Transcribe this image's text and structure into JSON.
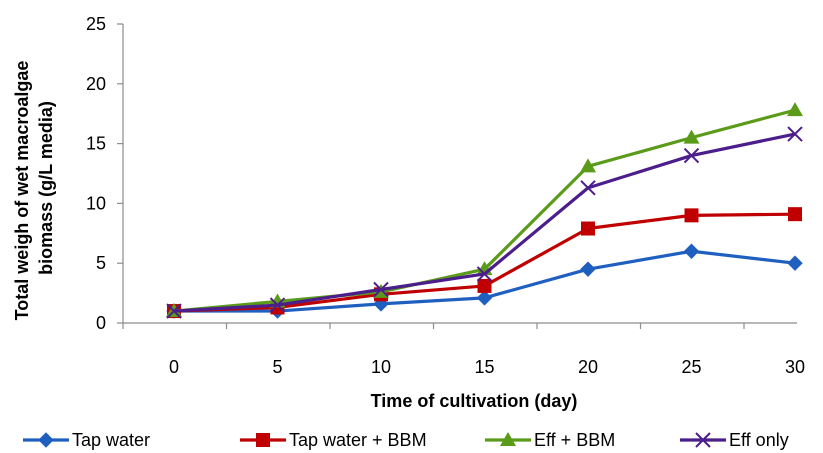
{
  "chart_data": {
    "type": "line",
    "x": [
      0,
      5,
      10,
      15,
      20,
      25,
      30
    ],
    "xlabel": "Time of cultivation (day)",
    "ylabel": "Total weigh of wet macroalgae biomass (g/L media)",
    "ylabel_lines": [
      "Total weigh of wet macroalgae",
      "biomass (g/L media)"
    ],
    "xlim": [
      0,
      30
    ],
    "ylim": [
      0,
      25
    ],
    "yticks": [
      0,
      5,
      10,
      15,
      20,
      25
    ],
    "xticks": [
      0,
      5,
      10,
      15,
      20,
      25,
      30
    ],
    "grid": false,
    "legend_position": "bottom",
    "series": [
      {
        "name": "Tap water",
        "color": "#1f5fbf",
        "marker": "diamond",
        "values": [
          1.0,
          1.0,
          1.6,
          2.1,
          4.5,
          6.0,
          5.0
        ]
      },
      {
        "name": "Tap water + BBM",
        "color": "#c00000",
        "marker": "square",
        "values": [
          1.0,
          1.3,
          2.4,
          3.1,
          7.9,
          9.0,
          9.1
        ]
      },
      {
        "name": "Eff + BBM",
        "color": "#5b9b1a",
        "marker": "triangle",
        "values": [
          1.0,
          1.8,
          2.6,
          4.5,
          13.1,
          15.5,
          17.8
        ]
      },
      {
        "name": "Eff only",
        "color": "#4b1e8c",
        "marker": "x",
        "values": [
          1.0,
          1.5,
          2.8,
          4.1,
          11.3,
          14.0,
          15.8
        ]
      }
    ]
  }
}
